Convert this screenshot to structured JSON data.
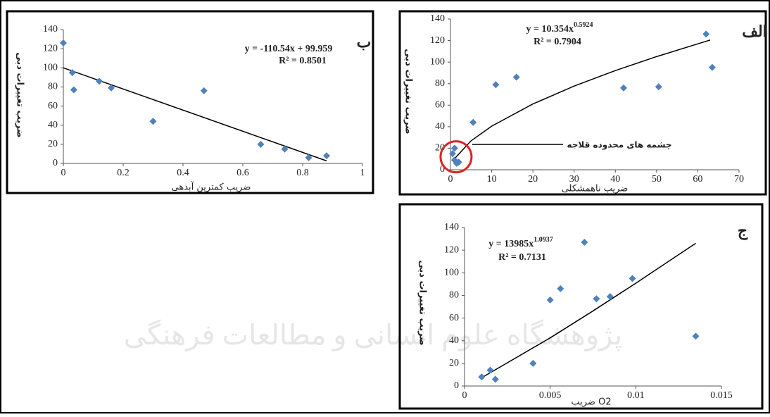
{
  "watermark": "پژوهشگاه علوم انسانی و مطالعات فرهنگی",
  "chart_data": [
    {
      "type": "scatter",
      "label": "ب",
      "label_color": "#c0392b",
      "color": "#4f81bd",
      "x_label": "ضریب کمترین آبدهی",
      "y_label": "ضریب تغییرات دبی",
      "x": [
        0,
        0.03,
        0.035,
        0.12,
        0.16,
        0.3,
        0.47,
        0.66,
        0.74,
        0.82,
        0.88
      ],
      "values": [
        126,
        95,
        77,
        86,
        79,
        44,
        76,
        20,
        15,
        6,
        8
      ],
      "xlim": [
        0,
        1
      ],
      "xticks": [
        0,
        0.2,
        0.4,
        0.6,
        0.8,
        1
      ],
      "ylim": [
        0,
        140
      ],
      "yticks": [
        0,
        20,
        40,
        60,
        80,
        100,
        120,
        140
      ],
      "trendline": {
        "x": [
          0,
          0.88
        ],
        "values": [
          99.959,
          2.684
        ],
        "equation": "y = -110.54x + 99.959",
        "r2": "R² = 0.8501"
      }
    },
    {
      "type": "scatter",
      "label": "الف",
      "label_color": "#c0392b",
      "color": "#4f81bd",
      "x_label": "ضریب ناهمشکلی",
      "y_label": "ضریب تغییرات دبی",
      "x": [
        0.5,
        1,
        1,
        1.5,
        2,
        5.5,
        11,
        16,
        42,
        50.5,
        62,
        63.5
      ],
      "values": [
        15,
        20,
        9,
        6,
        7,
        44,
        79,
        86,
        76,
        77,
        126,
        95
      ],
      "xlim": [
        0,
        70
      ],
      "xticks": [
        0,
        10,
        20,
        30,
        40,
        50,
        60,
        70
      ],
      "ylim": [
        0,
        140
      ],
      "yticks": [
        0,
        20,
        40,
        60,
        80,
        100,
        120,
        140
      ],
      "trendline": {
        "x": [
          1,
          5,
          10,
          20,
          30,
          40,
          50,
          63
        ],
        "values": [
          10.35,
          26.9,
          40.5,
          61.1,
          77.7,
          92.1,
          105.1,
          120.5
        ],
        "equation": "y = 10.354x",
        "exponent": "0.5924",
        "r2": "R² = 0.7904"
      },
      "annotation": "چشمه های محدوده قلاجه"
    },
    {
      "type": "scatter",
      "label": "ج",
      "label_color": "#c0392b",
      "color": "#4f81bd",
      "x_label": "ضریب O2",
      "y_label": "ضریب تغییرات دبی",
      "x": [
        0.001,
        0.0015,
        0.0018,
        0.004,
        0.005,
        0.0056,
        0.007,
        0.0077,
        0.0085,
        0.0098,
        0.0135
      ],
      "values": [
        8,
        14,
        6,
        20,
        76,
        86,
        127,
        77,
        79,
        95,
        44
      ],
      "xlim": [
        0,
        0.015
      ],
      "xticks": [
        0,
        0.005,
        0.01,
        0.015
      ],
      "ylim": [
        0,
        140
      ],
      "yticks": [
        0,
        20,
        40,
        60,
        80,
        100,
        120,
        140
      ],
      "trendline": {
        "x": [
          0.001,
          0.005,
          0.0075,
          0.01,
          0.0135
        ],
        "values": [
          7.3,
          42.5,
          66.3,
          90.8,
          126.1
        ],
        "equation": "y = 13985x",
        "exponent": "1.0937",
        "r2": "R² = 0.7131"
      }
    }
  ]
}
